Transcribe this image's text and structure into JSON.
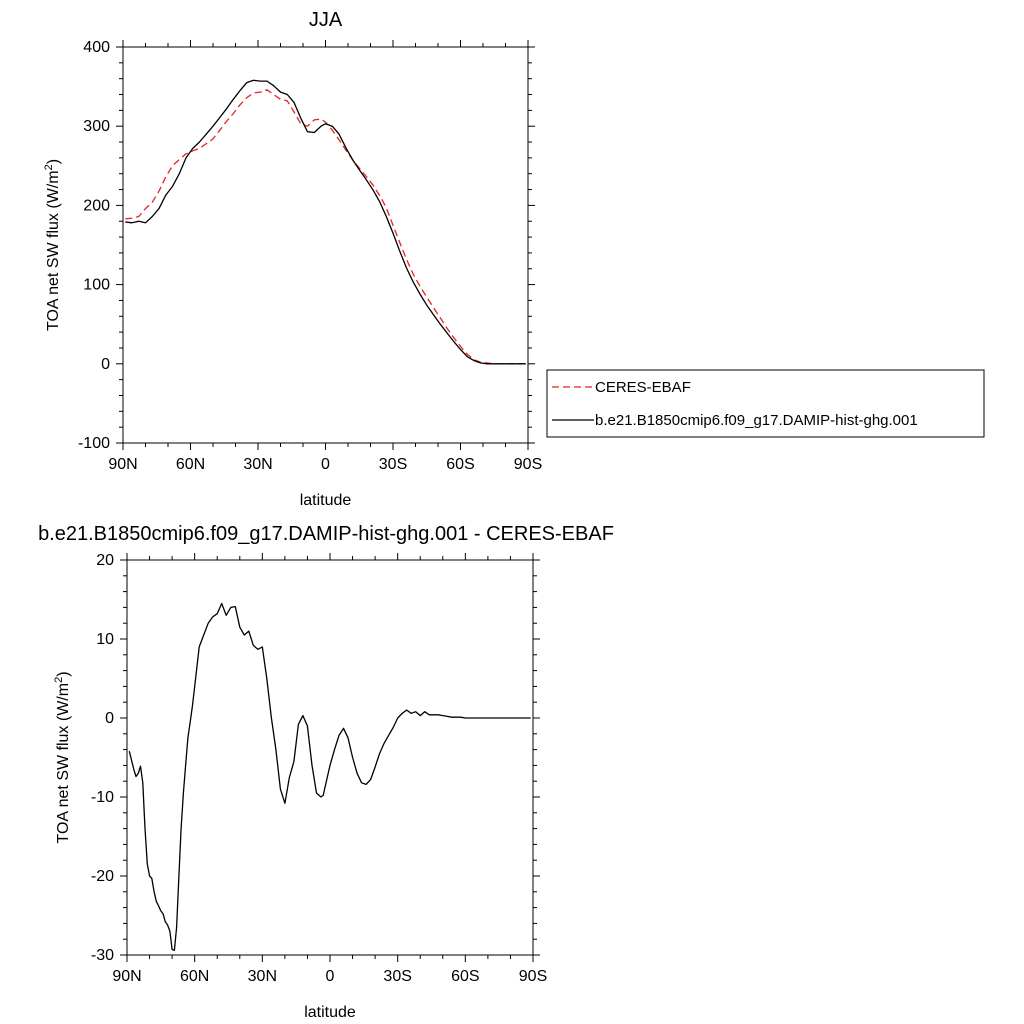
{
  "chart_data": [
    {
      "type": "line",
      "title": "JJA",
      "xlabel": "latitude",
      "ylabel": "TOA net SW flux (W/m",
      "ylabel_sup": "2",
      "ylabel_close": ")",
      "xlim": [
        90,
        -90
      ],
      "ylim": [
        -100,
        400
      ],
      "xticks": [
        {
          "value": 90,
          "label": "90N"
        },
        {
          "value": 60,
          "label": "60N"
        },
        {
          "value": 30,
          "label": "30N"
        },
        {
          "value": 0,
          "label": "0"
        },
        {
          "value": -30,
          "label": "30S"
        },
        {
          "value": -60,
          "label": "60S"
        },
        {
          "value": -90,
          "label": "90S"
        }
      ],
      "yticks": [
        {
          "value": 400,
          "label": "400"
        },
        {
          "value": 300,
          "label": "300"
        },
        {
          "value": 200,
          "label": "200"
        },
        {
          "value": 100,
          "label": "100"
        },
        {
          "value": 0,
          "label": "0"
        },
        {
          "value": -100,
          "label": "-100"
        }
      ],
      "grid": false,
      "legend": "right",
      "series": [
        {
          "name": "CERES-EBAF",
          "color": "#e8221f",
          "dash": true,
          "x": [
            89,
            86,
            83,
            80,
            77,
            74,
            71,
            68,
            65,
            62,
            59,
            56,
            53,
            50,
            47,
            44,
            41,
            38,
            35,
            32,
            29,
            26,
            23,
            20,
            17,
            14,
            11,
            8,
            5,
            2,
            0,
            -3,
            -6,
            -9,
            -12,
            -15,
            -18,
            -21,
            -24,
            -27,
            -30,
            -33,
            -36,
            -39,
            -42,
            -45,
            -48,
            -51,
            -54,
            -57,
            -60,
            -63,
            -66,
            -69,
            -72,
            -75,
            -78,
            -81,
            -84,
            -87,
            -89
          ],
          "y": [
            183,
            184,
            186,
            196,
            204,
            218,
            236,
            250,
            258,
            265,
            269,
            272,
            278,
            284,
            295,
            306,
            316,
            327,
            336,
            342,
            343,
            346,
            340,
            334,
            332,
            318,
            303,
            300,
            308,
            309,
            305,
            295,
            283,
            270,
            258,
            247,
            237,
            226,
            213,
            197,
            175,
            153,
            132,
            113,
            98,
            84,
            71,
            58,
            45,
            33,
            22,
            12,
            5,
            2,
            1,
            0,
            0,
            0,
            0,
            0,
            0
          ]
        },
        {
          "name": "b.e21.B1850cmip6.f09_g17.DAMIP-hist-ghg.001",
          "color": "#000000",
          "dash": false,
          "x": [
            89,
            86,
            83,
            80,
            77,
            74,
            71,
            68,
            65,
            62,
            59,
            56,
            53,
            50,
            47,
            44,
            41,
            38,
            35,
            32,
            29,
            26,
            23,
            20,
            17,
            14,
            11,
            8,
            5,
            2,
            0,
            -3,
            -6,
            -9,
            -12,
            -15,
            -18,
            -21,
            -24,
            -27,
            -30,
            -33,
            -36,
            -39,
            -42,
            -45,
            -48,
            -51,
            -54,
            -57,
            -60,
            -63,
            -66,
            -69,
            -72,
            -75,
            -78,
            -81,
            -84,
            -87,
            -89
          ],
          "y": [
            179,
            178,
            180,
            178,
            186,
            196,
            213,
            224,
            240,
            260,
            272,
            280,
            290,
            300,
            311,
            322,
            334,
            345,
            355,
            358,
            357,
            357,
            351,
            343,
            340,
            330,
            310,
            293,
            292,
            300,
            303,
            300,
            290,
            273,
            258,
            245,
            233,
            220,
            205,
            186,
            165,
            142,
            121,
            103,
            88,
            74,
            62,
            50,
            39,
            28,
            18,
            9,
            4,
            1,
            0,
            0,
            0,
            0,
            0,
            0,
            0
          ]
        }
      ]
    },
    {
      "type": "line",
      "title": "b.e21.B1850cmip6.f09_g17.DAMIP-hist-ghg.001 - CERES-EBAF",
      "xlabel": "latitude",
      "ylabel": "TOA net SW flux (W/m",
      "ylabel_sup": "2",
      "ylabel_close": ")",
      "xlim": [
        90,
        -90
      ],
      "ylim": [
        -30,
        20
      ],
      "xticks": [
        {
          "value": 90,
          "label": "90N"
        },
        {
          "value": 60,
          "label": "60N"
        },
        {
          "value": 30,
          "label": "30N"
        },
        {
          "value": 0,
          "label": "0"
        },
        {
          "value": -30,
          "label": "30S"
        },
        {
          "value": -60,
          "label": "60S"
        },
        {
          "value": -90,
          "label": "90S"
        }
      ],
      "yticks": [
        {
          "value": 20,
          "label": "20"
        },
        {
          "value": 10,
          "label": "10"
        },
        {
          "value": 0,
          "label": "0"
        },
        {
          "value": -10,
          "label": "-10"
        },
        {
          "value": -20,
          "label": "-20"
        },
        {
          "value": -30,
          "label": "-30"
        }
      ],
      "grid": false,
      "series": [
        {
          "name": "",
          "color": "#000000",
          "dash": false,
          "x": [
            89,
            87,
            86,
            85,
            84,
            83,
            82,
            81,
            80,
            79,
            78,
            77,
            76,
            75,
            74,
            73,
            72,
            71,
            70,
            69,
            68,
            67,
            66,
            65,
            64,
            63,
            62,
            61,
            60,
            58,
            56,
            54,
            52,
            50,
            48,
            46,
            44,
            42,
            40,
            38,
            36,
            34,
            32,
            30,
            28,
            26,
            24,
            22,
            20,
            18,
            16,
            14,
            12,
            10,
            8,
            6,
            4,
            3,
            2,
            0,
            -2,
            -4,
            -6,
            -8,
            -10,
            -12,
            -14,
            -16,
            -18,
            -20,
            -22,
            -24,
            -26,
            -28,
            -30,
            -32,
            -34,
            -36,
            -38,
            -40,
            -42,
            -44,
            -46,
            -48,
            -50,
            -52,
            -54,
            -56,
            -58,
            -60,
            -62,
            -64,
            -66,
            -68,
            -70,
            -72,
            -74,
            -76,
            -78,
            -80,
            -82,
            -84,
            -86,
            -88,
            -89
          ],
          "y": [
            -4.2,
            -6.5,
            -7.4,
            -7.0,
            -6.1,
            -8.2,
            -14.0,
            -18.5,
            -20.0,
            -20.3,
            -22.0,
            -23.2,
            -23.8,
            -24.4,
            -24.8,
            -25.8,
            -26.2,
            -27.0,
            -29.3,
            -29.4,
            -26.5,
            -20.0,
            -14.0,
            -9.5,
            -6.0,
            -2.5,
            -0.5,
            1.5,
            4.0,
            9.0,
            10.5,
            12.0,
            12.8,
            13.2,
            14.5,
            13.0,
            14.0,
            14.1,
            11.5,
            10.5,
            11.0,
            9.2,
            8.7,
            9.0,
            5.0,
            0.0,
            -4.0,
            -9.0,
            -10.8,
            -7.5,
            -5.5,
            -0.8,
            0.3,
            -1.0,
            -6.0,
            -9.5,
            -10.0,
            -9.8,
            -8.5,
            -6.0,
            -4.0,
            -2.2,
            -1.3,
            -2.5,
            -5.0,
            -7.0,
            -8.2,
            -8.4,
            -7.8,
            -6.2,
            -4.5,
            -3.2,
            -2.2,
            -1.2,
            0.0,
            0.6,
            1.0,
            0.6,
            0.8,
            0.3,
            0.8,
            0.4,
            0.4,
            0.4,
            0.3,
            0.2,
            0.1,
            0.1,
            0.1,
            0.0,
            0.0,
            0.0,
            0.0,
            0.0,
            0.0,
            0.0,
            0.0,
            0.0,
            0.0,
            0.0,
            0.0,
            0.0,
            0.0,
            0.0,
            0.0
          ]
        }
      ]
    }
  ],
  "legend": {
    "items": [
      {
        "label": "CERES-EBAF"
      },
      {
        "label": "b.e21.B1850cmip6.f09_g17.DAMIP-hist-ghg.001"
      }
    ]
  }
}
